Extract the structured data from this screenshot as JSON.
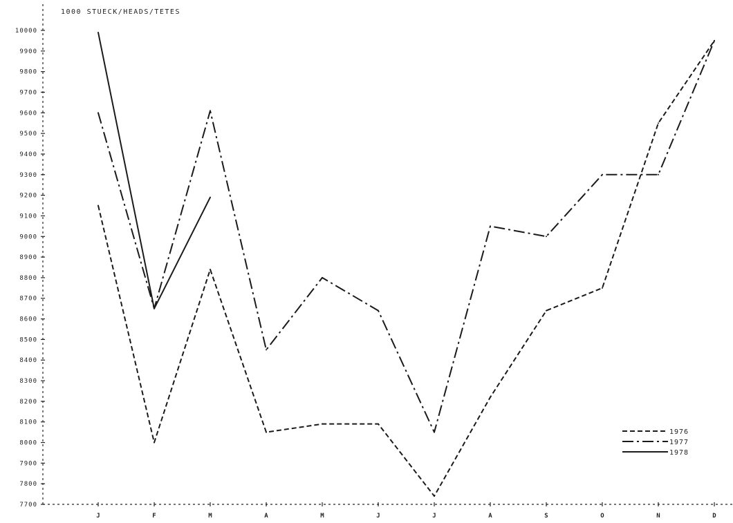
{
  "chart_data": {
    "type": "line",
    "title": "",
    "ylabel": "1000 STUECK/HEADS/TETES",
    "xlabel": "",
    "categories": [
      "J",
      "F",
      "M",
      "A",
      "M",
      "J",
      "J",
      "A",
      "S",
      "O",
      "N",
      "D"
    ],
    "y_ticks": [
      "7700",
      "7800",
      "7900",
      "8000",
      "8100",
      "8200",
      "8300",
      "8400",
      "8500",
      "8600",
      "8700",
      "8800",
      "8900",
      "9000",
      "9100",
      "9200",
      "9300",
      "9400",
      "9500",
      "9600",
      "9700",
      "9800",
      "9900",
      "10000"
    ],
    "ylim": [
      7700,
      10000
    ],
    "grid": false,
    "legend_position": "bottom-right",
    "series": [
      {
        "name": "1976",
        "style": "dashed",
        "values": [
          9150,
          8000,
          8840,
          8050,
          8090,
          8090,
          7740,
          8220,
          8640,
          8750,
          9550,
          9950
        ]
      },
      {
        "name": "1977",
        "style": "dash-dot",
        "values": [
          9600,
          8650,
          9610,
          8450,
          8800,
          8640,
          8050,
          9050,
          9000,
          9300,
          9300,
          9950
        ]
      },
      {
        "name": "1978",
        "style": "solid",
        "values": [
          9990,
          8650,
          9190,
          null,
          null,
          null,
          null,
          null,
          null,
          null,
          null,
          9950
        ]
      }
    ]
  }
}
